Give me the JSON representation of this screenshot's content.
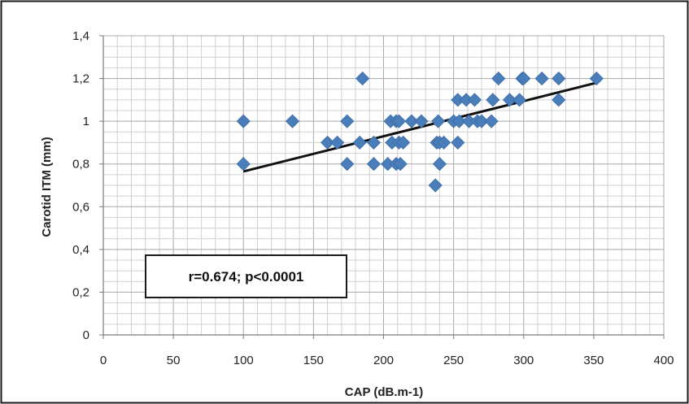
{
  "chart_data": {
    "type": "scatter",
    "title": "",
    "xlabel": "CAP (dB.m-1)",
    "ylabel": "Carotid ITM (mm)",
    "xlim": [
      0,
      400
    ],
    "ylim": [
      0,
      1.4
    ],
    "x_ticks": [
      "0",
      "50",
      "100",
      "150",
      "200",
      "250",
      "300",
      "350",
      "400"
    ],
    "y_ticks": [
      "0",
      "0,2",
      "0,4",
      "0,6",
      "0,8",
      "1",
      "1,2",
      "1,4"
    ],
    "grid": true,
    "legend": "none",
    "annotation": "r=0.674; p<0.0001",
    "marker_color": "#4a7ebb",
    "trendline": {
      "x": [
        100,
        352
      ],
      "y": [
        0.765,
        1.18
      ],
      "color": "#111111"
    },
    "points": [
      [
        100,
        1.0
      ],
      [
        100,
        0.8
      ],
      [
        135,
        1.0
      ],
      [
        160,
        0.9
      ],
      [
        167,
        0.9
      ],
      [
        174,
        1.0
      ],
      [
        174,
        0.8
      ],
      [
        183,
        0.9
      ],
      [
        185,
        1.2
      ],
      [
        193,
        0.9
      ],
      [
        193,
        0.8
      ],
      [
        203,
        0.8
      ],
      [
        205,
        1.0
      ],
      [
        206,
        0.9
      ],
      [
        209,
        1.0
      ],
      [
        209,
        0.8
      ],
      [
        211,
        1.0
      ],
      [
        211,
        0.9
      ],
      [
        212,
        0.8
      ],
      [
        214,
        0.9
      ],
      [
        220,
        1.0
      ],
      [
        227,
        1.0
      ],
      [
        237,
        0.7
      ],
      [
        238,
        0.9
      ],
      [
        239,
        1.0
      ],
      [
        240,
        0.9
      ],
      [
        240,
        0.8
      ],
      [
        243,
        0.9
      ],
      [
        250,
        1.0
      ],
      [
        253,
        1.1
      ],
      [
        253,
        0.9
      ],
      [
        254,
        1.0
      ],
      [
        259,
        1.1
      ],
      [
        261,
        1.0
      ],
      [
        265,
        1.1
      ],
      [
        267,
        1.0
      ],
      [
        270,
        1.0
      ],
      [
        277,
        1.0
      ],
      [
        278,
        1.1
      ],
      [
        282,
        1.2
      ],
      [
        290,
        1.1
      ],
      [
        297,
        1.1
      ],
      [
        299,
        1.2
      ],
      [
        300,
        1.2
      ],
      [
        313,
        1.2
      ],
      [
        325,
        1.2
      ],
      [
        325,
        1.1
      ],
      [
        352,
        1.2
      ]
    ]
  }
}
